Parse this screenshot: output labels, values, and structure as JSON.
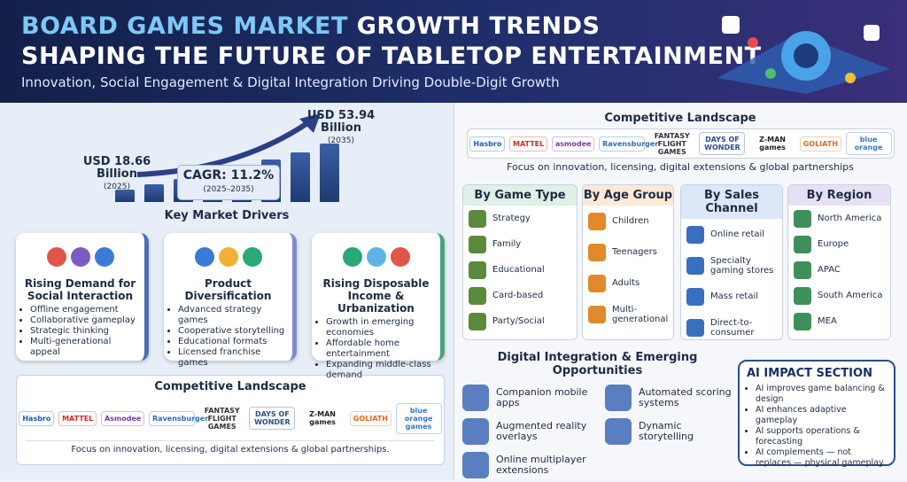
{
  "header": {
    "title_highlight": "BOARD GAMES MARKET",
    "title_rest": "GROWTH TRENDS",
    "title_line2": "SHAPING THE FUTURE OF TABLETOP ENTERTAINMENT",
    "subtitle": "Innovation, Social Engagement & Digital Integration Driving Double-Digit Growth"
  },
  "market": {
    "start": {
      "amount": "USD 18.66",
      "unit": "Billion",
      "year": "(2025)"
    },
    "end": {
      "amount": "USD 53.94",
      "unit": "Billion",
      "year": "(2035)"
    },
    "cagr": {
      "label": "CAGR: 11.2%",
      "period": "(2025–2035)"
    }
  },
  "drivers": {
    "title": "Key Market Drivers",
    "cards": [
      {
        "title": "Rising Demand for Social Interaction",
        "bullets": [
          "Offline engagement",
          "Collaborative gameplay",
          "Strategic thinking",
          "Multi-generational appeal"
        ]
      },
      {
        "title": "Product Diversification",
        "bullets": [
          "Advanced strategy games",
          "Cooperative storytelling",
          "Educational formats",
          "Licensed franchise games"
        ]
      },
      {
        "title": "Rising Disposable Income & Urbanization",
        "bullets": [
          "Growth in emerging economies",
          "Affordable home entertainment",
          "Expanding middle-class demand"
        ]
      }
    ]
  },
  "competitive_bottom": {
    "title": "Competitive Landscape",
    "logos": [
      "Hasbro",
      "MATTEL",
      "Asmodee",
      "Ravensburger",
      "FANTASY FLIGHT GAMES",
      "DAYS OF WONDER",
      "Z-MAN games",
      "GOLIATH",
      "blue orange games"
    ],
    "note": "Focus on innovation, licensing, digital extensions & global partnerships."
  },
  "competitive_top": {
    "title": "Competitive Landscape",
    "logos": [
      "Hasbro",
      "MATTEL",
      "asmodee",
      "Ravensburger",
      "FANTASY FLIGHT GAMES",
      "DAYS OF WONDER",
      "Z-MAN games",
      "GOLIATH",
      "blue orange"
    ],
    "note": "Focus on innovation, licensing, digital extensions & global partnerships"
  },
  "segments": [
    {
      "title": "By Game Type",
      "items": [
        "Strategy",
        "Family",
        "Educational",
        "Card-based",
        "Party/Social"
      ]
    },
    {
      "title": "By Age Group",
      "items": [
        "Children",
        "Teenagers",
        "Adults",
        "Multi-generational"
      ]
    },
    {
      "title": "By Sales Channel",
      "items": [
        "Online retail",
        "Specialty gaming stores",
        "Mass retail",
        "Direct-to-consumer"
      ]
    },
    {
      "title": "By Region",
      "items": [
        "North America",
        "Europe",
        "APAC",
        "South America",
        "MEA"
      ]
    }
  ],
  "digital": {
    "title": "Digital Integration & Emerging Opportunities",
    "items": [
      "Companion mobile apps",
      "Augmented reality overlays",
      "Online multiplayer extensions",
      "Automated scoring systems",
      "Dynamic storytelling"
    ]
  },
  "ai": {
    "title": "AI IMPACT SECTION",
    "bullets": [
      "AI improves game balancing & design",
      "AI enhances adaptive gameplay",
      "AI supports operations & forecasting",
      "AI complements — not replaces — physical gameplay"
    ]
  }
}
